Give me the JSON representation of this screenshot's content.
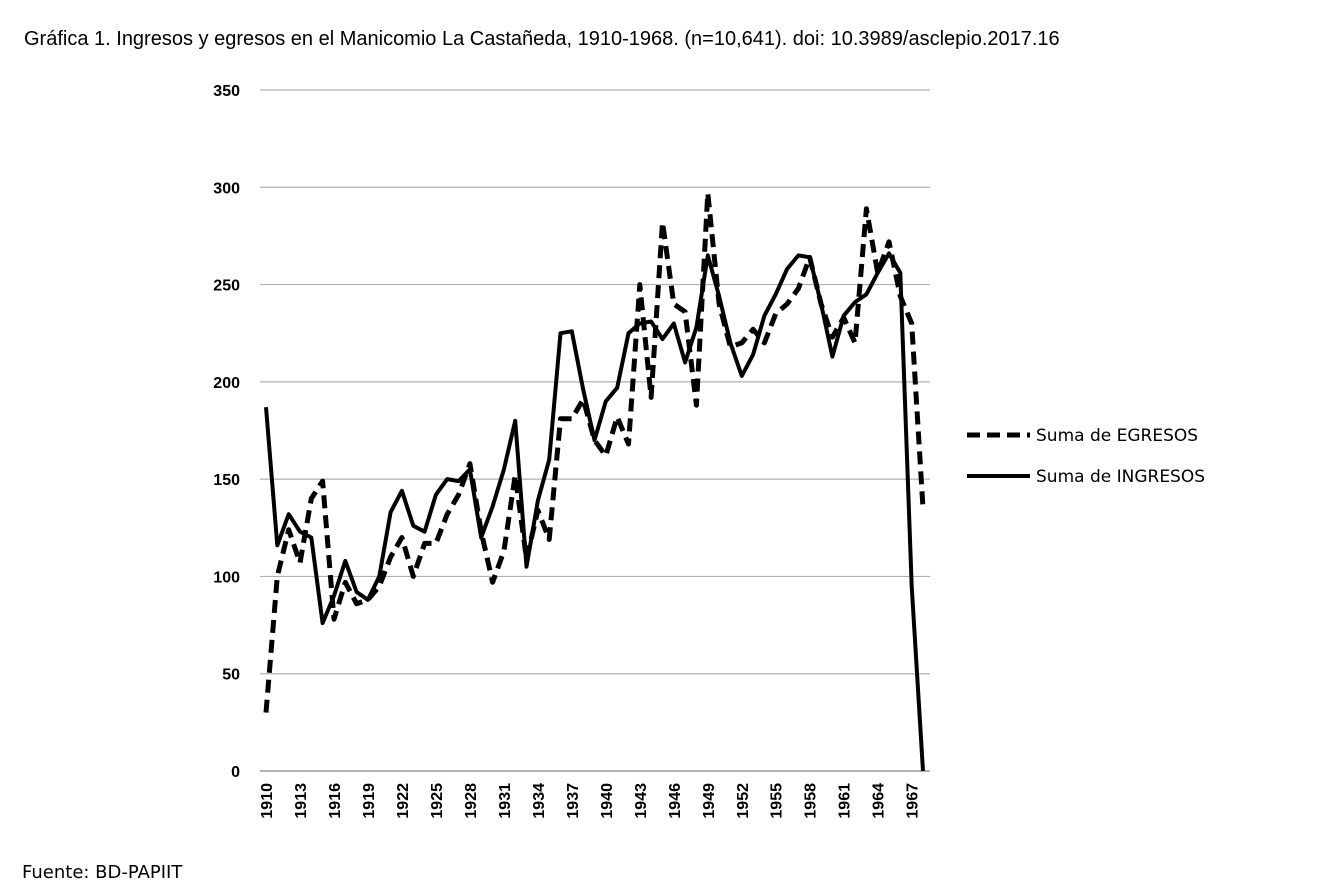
{
  "title": "Gráfica 1. Ingresos y egresos en el Manicomio La Castañeda, 1910-1968. (n=10,641). doi: 10.3989/asclepio.2017.16",
  "source": "Fuente: BD-PAPIIT",
  "chart_data": {
    "type": "line",
    "title": "Gráfica 1. Ingresos y egresos en el Manicomio La Castañeda, 1910-1968. (n=10,641). doi: 10.3989/asclepio.2017.16",
    "xlabel": "",
    "ylabel": "",
    "ylim": [
      0,
      350
    ],
    "yticks": [
      0,
      50,
      100,
      150,
      200,
      250,
      300,
      350
    ],
    "grid": "horizontal",
    "legend_position": "right",
    "x": [
      1910,
      1911,
      1912,
      1913,
      1914,
      1915,
      1916,
      1917,
      1918,
      1919,
      1920,
      1921,
      1922,
      1923,
      1924,
      1925,
      1926,
      1927,
      1928,
      1929,
      1930,
      1931,
      1932,
      1933,
      1934,
      1935,
      1936,
      1937,
      1938,
      1939,
      1940,
      1941,
      1942,
      1943,
      1944,
      1945,
      1946,
      1947,
      1948,
      1949,
      1950,
      1951,
      1952,
      1953,
      1954,
      1955,
      1956,
      1957,
      1958,
      1959,
      1960,
      1961,
      1962,
      1963,
      1964,
      1965,
      1966,
      1967,
      1968
    ],
    "xtick_labels": [
      "1910",
      "1913",
      "1916",
      "1919",
      "1922",
      "1925",
      "1928",
      "1931",
      "1934",
      "1937",
      "1940",
      "1943",
      "1946",
      "1949",
      "1952",
      "1955",
      "1958",
      "1961",
      "1964",
      "1967"
    ],
    "series": [
      {
        "name": "Suma de EGRESOS",
        "style": "dashed",
        "values": [
          30,
          100,
          124,
          107,
          140,
          149,
          78,
          97,
          86,
          88,
          95,
          110,
          120,
          100,
          117,
          117,
          132,
          142,
          158,
          123,
          97,
          113,
          152,
          109,
          134,
          119,
          181,
          181,
          191,
          170,
          162,
          182,
          168,
          250,
          192,
          282,
          240,
          236,
          188,
          297,
          240,
          218,
          220,
          227,
          220,
          235,
          240,
          248,
          264,
          240,
          223,
          233,
          220,
          289,
          256,
          272,
          244,
          230,
          135
        ]
      },
      {
        "name": "Suma de INGRESOS",
        "style": "solid",
        "values": [
          187,
          116,
          132,
          123,
          120,
          76,
          90,
          108,
          92,
          88,
          100,
          133,
          144,
          126,
          123,
          142,
          150,
          149,
          155,
          120,
          136,
          155,
          180,
          105,
          139,
          160,
          225,
          226,
          196,
          170,
          190,
          197,
          225,
          230,
          231,
          222,
          230,
          210,
          228,
          265,
          244,
          220,
          203,
          214,
          234,
          245,
          258,
          265,
          264,
          240,
          213,
          234,
          241,
          245,
          256,
          266,
          256,
          95,
          0
        ]
      }
    ]
  }
}
